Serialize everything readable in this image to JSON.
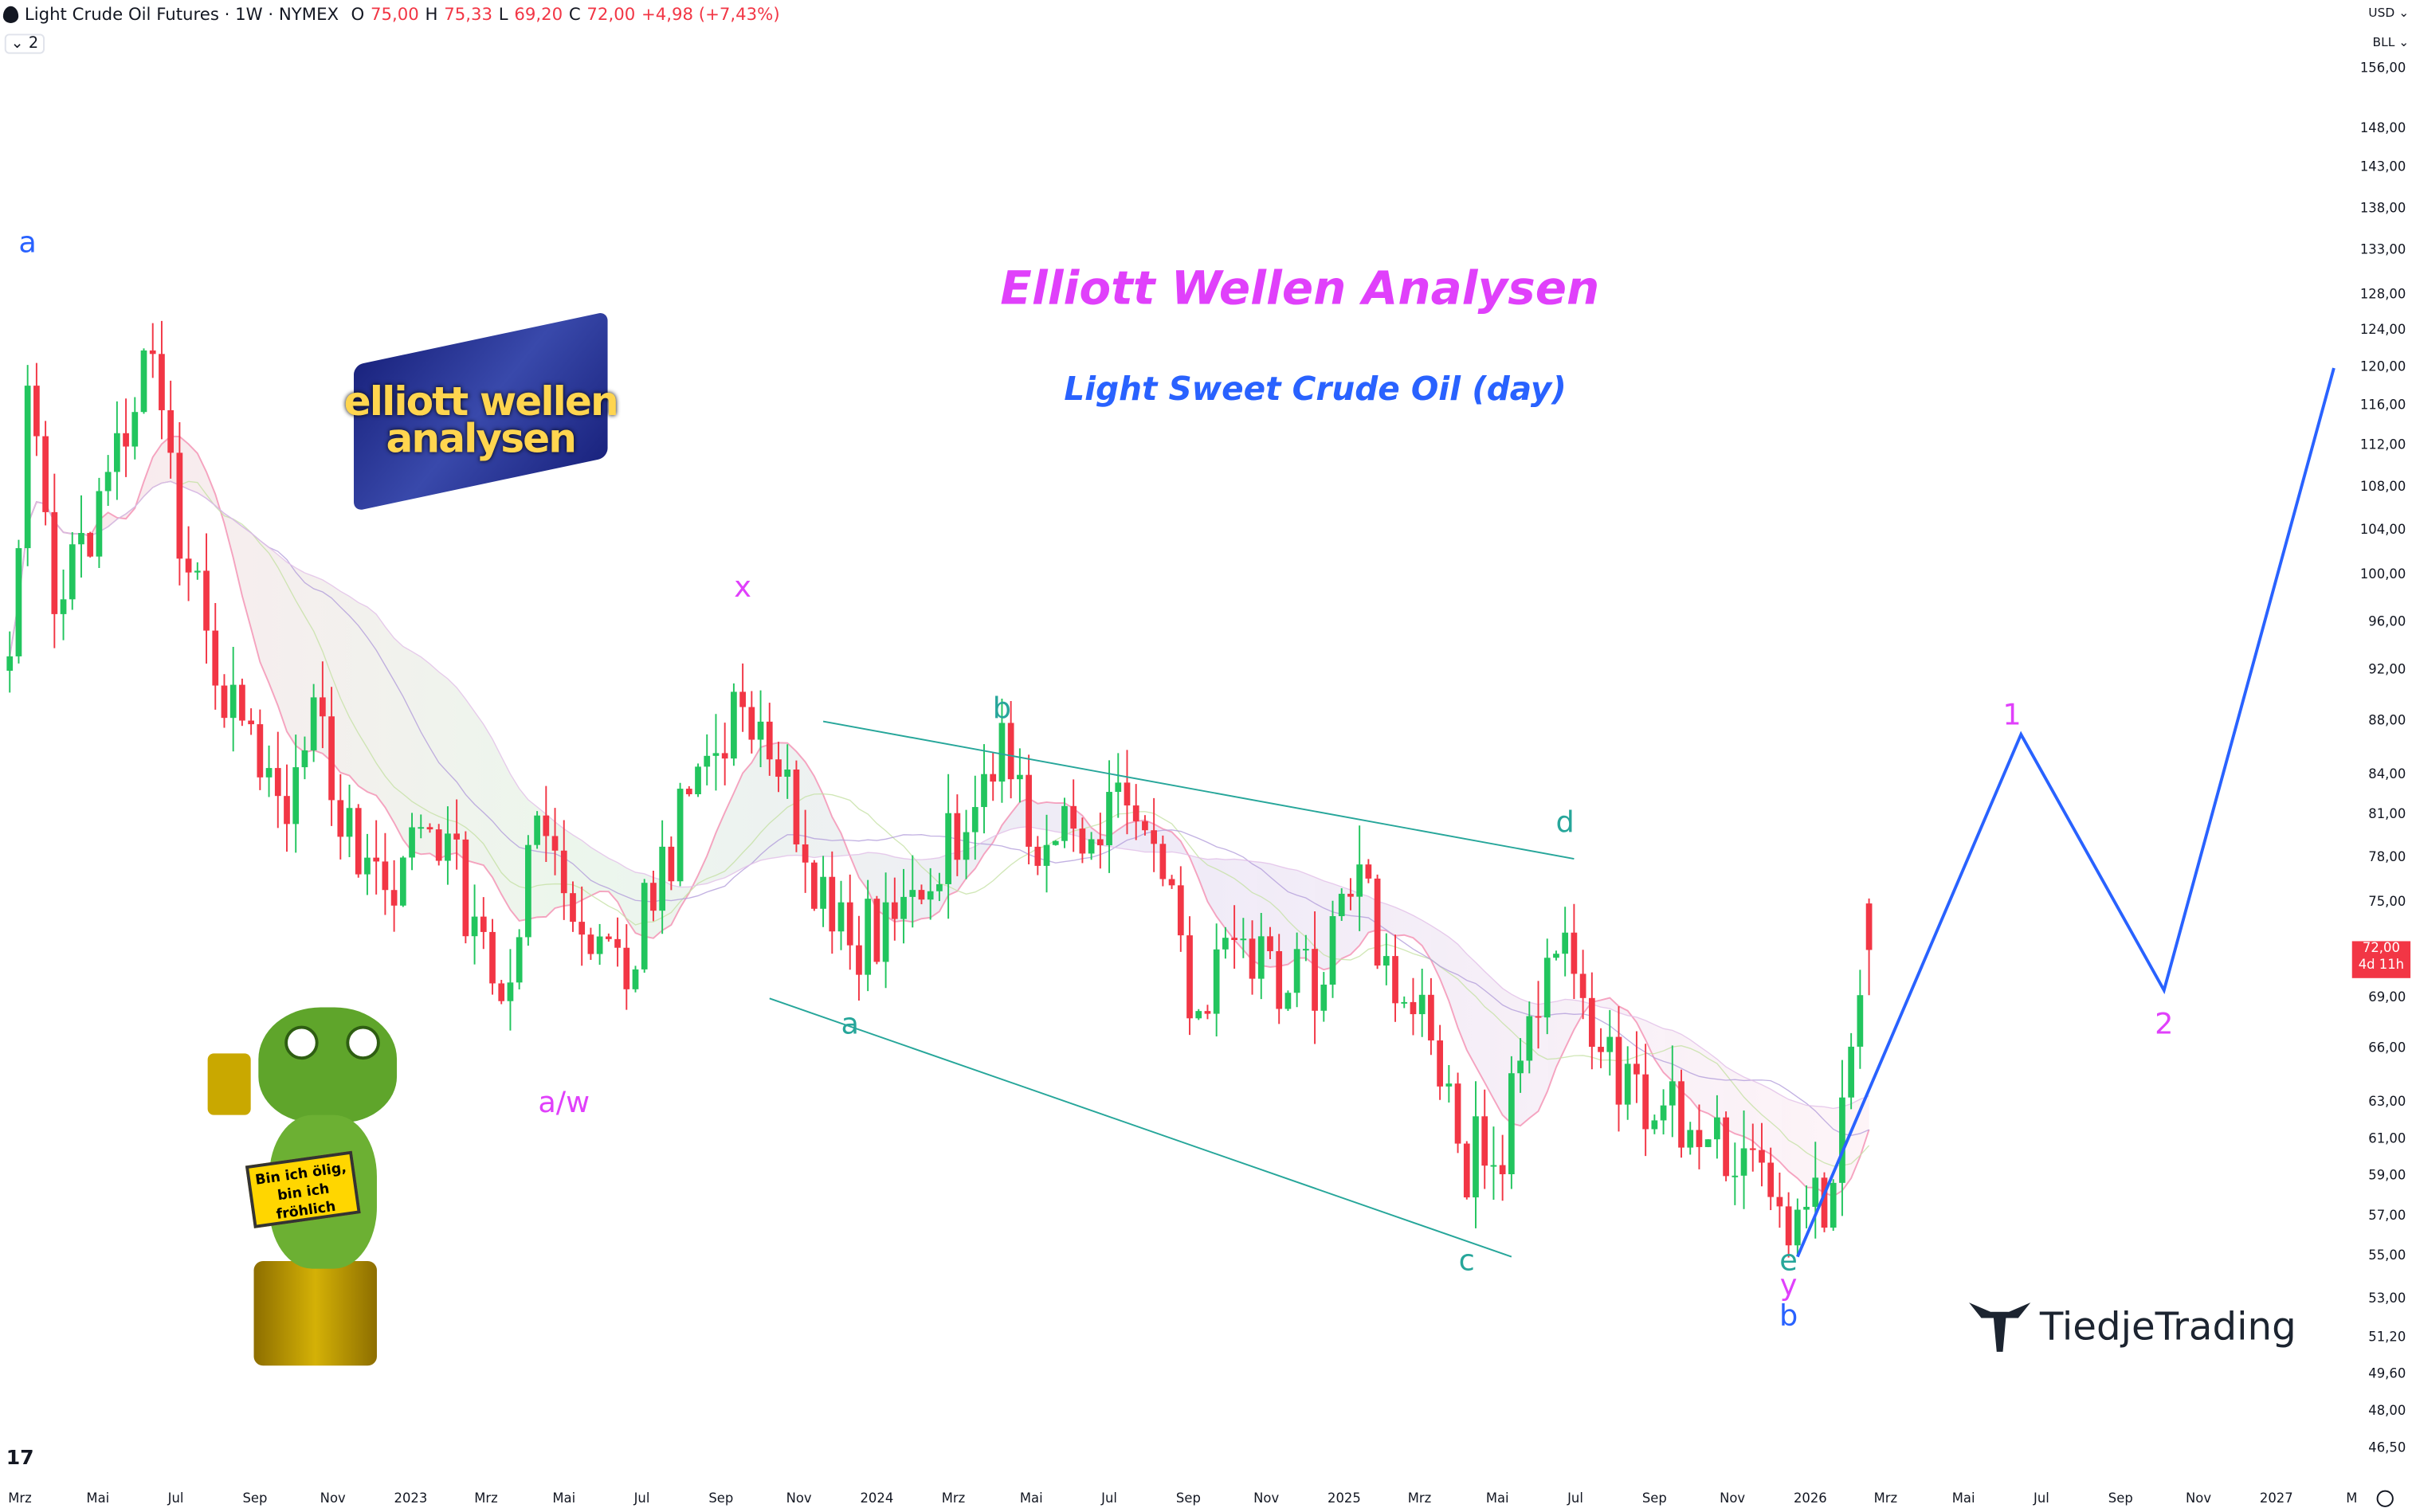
{
  "header": {
    "symbol": "Light Crude Oil Futures · 1W · NYMEX",
    "open_label": "O",
    "open": "75,00",
    "high_label": "H",
    "high": "75,33",
    "low_label": "L",
    "low": "69,20",
    "close_label": "C",
    "close": "72,00",
    "change": "+4,98 (+7,43%)",
    "indicators_collapsed": "2"
  },
  "axis_controls": {
    "currency": "USD",
    "unit": "BLL"
  },
  "current_price": {
    "value": "72,00",
    "countdown": "4d 11h",
    "color": "#f23645"
  },
  "colors": {
    "up": "#22c55e",
    "down": "#f23645",
    "channel": "#26a69a",
    "projection": "#2962ff",
    "magenta": "#e040fb"
  },
  "annotations": {
    "title": "Elliott Wellen Analysen",
    "subtitle": "Light Sweet Crude Oil (day)",
    "mascot_sign": "Bin ich ölig, bin ich fröhlich",
    "brand": "TiedjeTrading",
    "logo_text": "elliott wellen analysen"
  },
  "chart_data": {
    "type": "candlestick",
    "scale": "log",
    "ylim": [
      46.5,
      156
    ],
    "y_ticks": [
      "156,00",
      "148,00",
      "143,00",
      "138,00",
      "133,00",
      "128,00",
      "124,00",
      "120,00",
      "116,00",
      "112,00",
      "108,00",
      "104,00",
      "100,00",
      "96,00",
      "92,00",
      "88,00",
      "84,00",
      "81,00",
      "78,00",
      "75,00",
      "69,00",
      "66,00",
      "63,00",
      "61,00",
      "59,00",
      "57,00",
      "55,00",
      "53,00",
      "51,20",
      "49,60",
      "48,00",
      "46,50"
    ],
    "x_ticks": [
      {
        "label": "Mrz",
        "date": "2022-03-01"
      },
      {
        "label": "Mai",
        "date": "2022-05-01"
      },
      {
        "label": "Jul",
        "date": "2022-07-01"
      },
      {
        "label": "Sep",
        "date": "2022-09-01"
      },
      {
        "label": "Nov",
        "date": "2022-11-01"
      },
      {
        "label": "2023",
        "date": "2023-01-01"
      },
      {
        "label": "Mrz",
        "date": "2023-03-01"
      },
      {
        "label": "Mai",
        "date": "2023-05-01"
      },
      {
        "label": "Jul",
        "date": "2023-07-01"
      },
      {
        "label": "Sep",
        "date": "2023-09-01"
      },
      {
        "label": "Nov",
        "date": "2023-11-01"
      },
      {
        "label": "2024",
        "date": "2024-01-01"
      },
      {
        "label": "Mrz",
        "date": "2024-03-01"
      },
      {
        "label": "Mai",
        "date": "2024-05-01"
      },
      {
        "label": "Jul",
        "date": "2024-07-01"
      },
      {
        "label": "Sep",
        "date": "2024-09-01"
      },
      {
        "label": "Nov",
        "date": "2024-11-01"
      },
      {
        "label": "2025",
        "date": "2025-01-01"
      },
      {
        "label": "Mrz",
        "date": "2025-03-01"
      },
      {
        "label": "Mai",
        "date": "2025-05-01"
      },
      {
        "label": "Jul",
        "date": "2025-07-01"
      },
      {
        "label": "Sep",
        "date": "2025-09-01"
      },
      {
        "label": "Nov",
        "date": "2025-11-01"
      },
      {
        "label": "2026",
        "date": "2026-01-01"
      },
      {
        "label": "Mrz",
        "date": "2026-03-01"
      },
      {
        "label": "Mai",
        "date": "2026-05-01"
      },
      {
        "label": "Jul",
        "date": "2026-07-01"
      },
      {
        "label": "Sep",
        "date": "2026-09-01"
      },
      {
        "label": "Nov",
        "date": "2026-11-01"
      },
      {
        "label": "2027",
        "date": "2027-01-01"
      },
      {
        "label": "M",
        "date": "2027-03-01"
      }
    ],
    "approx_closes": [
      [
        "2022-02-21",
        92
      ],
      [
        "2022-03-07",
        115
      ],
      [
        "2022-03-28",
        100
      ],
      [
        "2022-04-25",
        104
      ],
      [
        "2022-05-23",
        115
      ],
      [
        "2022-06-13",
        120
      ],
      [
        "2022-07-11",
        100
      ],
      [
        "2022-08-08",
        90
      ],
      [
        "2022-09-19",
        80
      ],
      [
        "2022-10-17",
        88
      ],
      [
        "2022-11-14",
        80
      ],
      [
        "2022-12-12",
        75
      ],
      [
        "2023-01-09",
        79
      ],
      [
        "2023-02-06",
        77
      ],
      [
        "2023-03-13",
        67
      ],
      [
        "2023-04-10",
        80
      ],
      [
        "2023-05-08",
        72
      ],
      [
        "2023-06-12",
        70
      ],
      [
        "2023-07-10",
        76
      ],
      [
        "2023-08-07",
        82
      ],
      [
        "2023-09-18",
        90
      ],
      [
        "2023-10-16",
        85
      ],
      [
        "2023-11-13",
        76
      ],
      [
        "2023-12-11",
        72
      ],
      [
        "2024-01-08",
        74
      ],
      [
        "2024-02-05",
        77
      ],
      [
        "2024-03-11",
        80
      ],
      [
        "2024-04-08",
        85
      ],
      [
        "2024-05-13",
        78
      ],
      [
        "2024-06-10",
        80
      ],
      [
        "2024-07-08",
        82
      ],
      [
        "2024-08-12",
        76
      ],
      [
        "2024-09-09",
        68
      ],
      [
        "2024-10-07",
        74
      ],
      [
        "2024-11-11",
        70
      ],
      [
        "2024-12-09",
        70
      ],
      [
        "2025-01-13",
        76
      ],
      [
        "2025-02-10",
        71
      ],
      [
        "2025-03-10",
        68
      ],
      [
        "2025-04-07",
        60
      ],
      [
        "2025-05-05",
        61
      ],
      [
        "2025-06-16",
        72
      ],
      [
        "2025-07-14",
        67
      ],
      [
        "2025-08-11",
        64
      ],
      [
        "2025-09-08",
        63
      ],
      [
        "2025-10-13",
        61
      ],
      [
        "2025-11-10",
        60
      ],
      [
        "2025-12-15",
        57
      ],
      [
        "2026-01-12",
        58
      ],
      [
        "2026-02-09",
        67
      ],
      [
        "2026-02-16",
        72
      ]
    ],
    "last_candle": {
      "open": 75.0,
      "high": 75.33,
      "low": 69.2,
      "close": 72.0
    },
    "channel": {
      "upper": [
        [
          "2023-11-20",
          88
        ],
        [
          "2025-06-30",
          78
        ]
      ],
      "lower": [
        [
          "2023-10-09",
          69
        ],
        [
          "2025-05-12",
          55
        ]
      ]
    },
    "projection": [
      [
        "2025-12-22",
        55
      ],
      [
        "2026-06-15",
        87
      ],
      [
        "2026-10-05",
        69.5
      ],
      [
        "2027-02-15",
        120
      ]
    ],
    "wave_labels": [
      {
        "text": "a",
        "date": "2022-03-07",
        "price": 134,
        "color": "#2962ff"
      },
      {
        "text": "x",
        "date": "2023-09-18",
        "price": 99,
        "color": "#e040fb"
      },
      {
        "text": "a/w",
        "date": "2023-05-01",
        "price": 63,
        "color": "#e040fb"
      },
      {
        "text": "b",
        "date": "2024-04-08",
        "price": 89,
        "color": "#26a69a"
      },
      {
        "text": "a",
        "date": "2023-12-11",
        "price": 67.5,
        "color": "#26a69a"
      },
      {
        "text": "d",
        "date": "2025-06-23",
        "price": 80.5,
        "color": "#26a69a"
      },
      {
        "text": "c",
        "date": "2025-04-07",
        "price": 54.8,
        "color": "#26a69a"
      },
      {
        "text": "e",
        "date": "2025-12-15",
        "price": 54.8,
        "color": "#26a69a"
      },
      {
        "text": "y",
        "date": "2025-12-15",
        "price": 53.6,
        "color": "#e040fb"
      },
      {
        "text": "b",
        "date": "2025-12-15",
        "price": 52.2,
        "color": "#2962ff"
      },
      {
        "text": "1",
        "date": "2026-06-08",
        "price": 88.5,
        "color": "#e040fb"
      },
      {
        "text": "2",
        "date": "2026-10-05",
        "price": 67.5,
        "color": "#e040fb"
      }
    ]
  }
}
